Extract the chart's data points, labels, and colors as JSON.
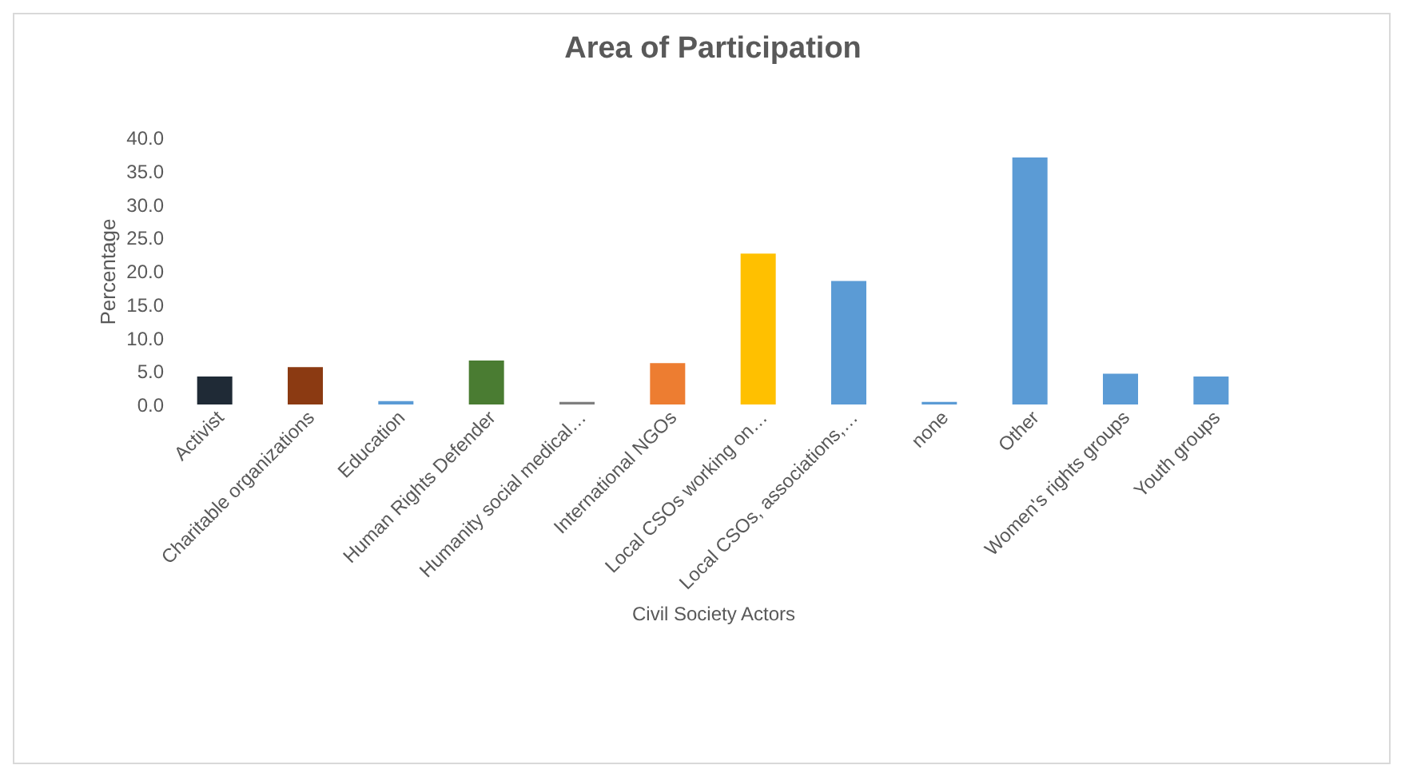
{
  "chart_data": {
    "type": "bar",
    "title": "Area of Participation",
    "xlabel": "Civil Society Actors",
    "ylabel": "Percentage",
    "categories": [
      "Activist",
      "Charitable organizations",
      "Education",
      "Human Rights Defender",
      "Humanity social medical…",
      "International NGOs",
      "Local CSOs working on…",
      "Local CSOs, associations,…",
      "none",
      "Other",
      "Women's rights groups",
      "Youth groups"
    ],
    "values": [
      4.2,
      5.6,
      0.5,
      6.6,
      0.4,
      6.2,
      22.6,
      18.5,
      0.4,
      37.0,
      4.6,
      4.2
    ],
    "colors": [
      "#1f2a36",
      "#8b3a12",
      "#5b9bd5",
      "#4a7c32",
      "#7f7f7f",
      "#ed7d31",
      "#ffc000",
      "#5b9bd5",
      "#5b9bd5",
      "#5b9bd5",
      "#5b9bd5",
      "#5b9bd5"
    ],
    "ylim": [
      0,
      40
    ],
    "yticks": [
      {
        "value": 0,
        "label": "0.0"
      },
      {
        "value": 5,
        "label": "5.0"
      },
      {
        "value": 10,
        "label": "10.0"
      },
      {
        "value": 15,
        "label": "15.0"
      },
      {
        "value": 20,
        "label": "20.0"
      },
      {
        "value": 25,
        "label": "25.0"
      },
      {
        "value": 30,
        "label": "30.0"
      },
      {
        "value": 35,
        "label": "35.0"
      },
      {
        "value": 40,
        "label": "40.0"
      }
    ]
  }
}
